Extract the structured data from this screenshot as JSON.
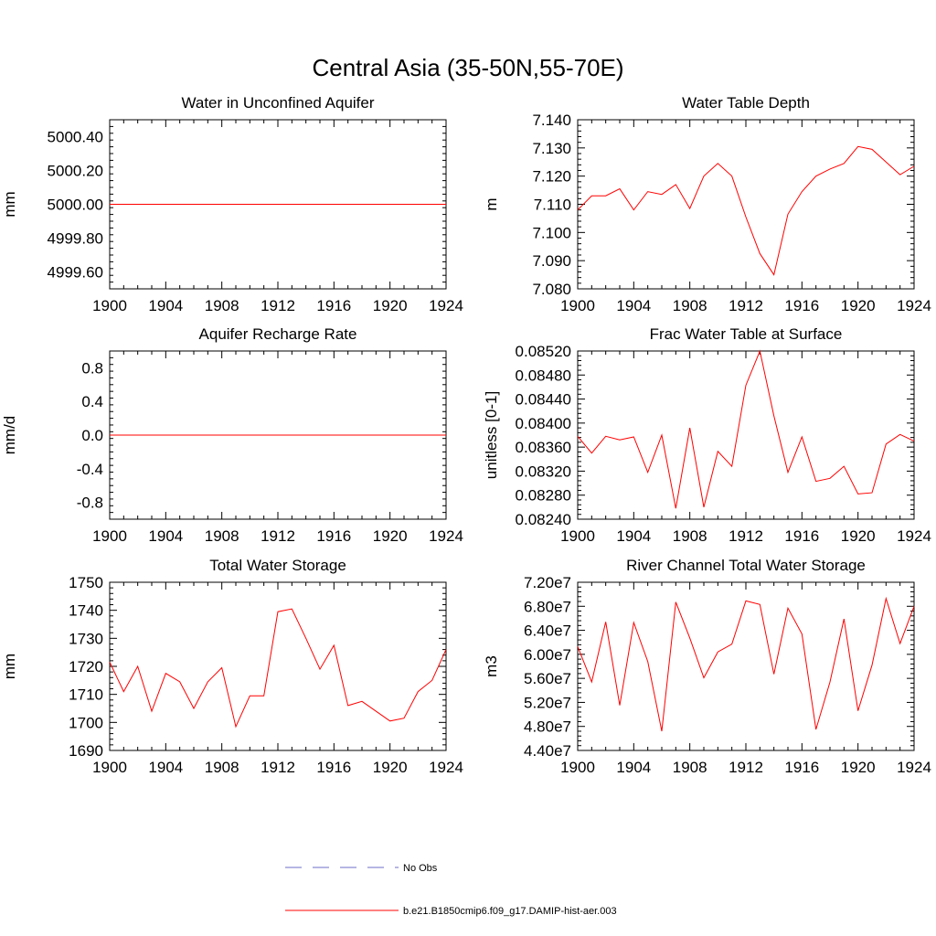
{
  "page_title": "Central Asia (35-50N,55-70E)",
  "legend": {
    "entries": [
      {
        "label": "No Obs",
        "style": "dashed",
        "color": "#6e6ec8"
      },
      {
        "label": "b.e21.B1850cmip6.f09_g17.DAMIP-hist-aer.003",
        "style": "solid",
        "color": "#ff0000"
      }
    ]
  },
  "chart_data": [
    {
      "type": "line",
      "title": "Water in Unconfined Aquifer",
      "ylabel": "mm",
      "xlim": [
        1900,
        1924
      ],
      "ylim": [
        4999.5,
        5000.5
      ],
      "xticks": [
        "1900",
        "1904",
        "1908",
        "1912",
        "1916",
        "1920",
        "1924"
      ],
      "yticks": [
        4999.6,
        4999.8,
        5000.0,
        5000.2,
        5000.4
      ],
      "ytick_labels": [
        "4999.60",
        "4999.80",
        "5000.00",
        "5000.20",
        "5000.40"
      ],
      "series": [
        {
          "name": "b.e21.B1850cmip6.f09_g17.DAMIP-hist-aer.003",
          "color": "#ff0000",
          "x": [
            1900,
            1901,
            1902,
            1903,
            1904,
            1905,
            1906,
            1907,
            1908,
            1909,
            1910,
            1911,
            1912,
            1913,
            1914,
            1915,
            1916,
            1917,
            1918,
            1919,
            1920,
            1921,
            1922,
            1923,
            1924
          ],
          "values": [
            5000,
            5000,
            5000,
            5000,
            5000,
            5000,
            5000,
            5000,
            5000,
            5000,
            5000,
            5000,
            5000,
            5000,
            5000,
            5000,
            5000,
            5000,
            5000,
            5000,
            5000,
            5000,
            5000,
            5000,
            5000
          ]
        }
      ]
    },
    {
      "type": "line",
      "title": "Water Table Depth",
      "ylabel": "m",
      "xlim": [
        1900,
        1924
      ],
      "ylim": [
        7.08,
        7.14
      ],
      "xticks": [
        "1900",
        "1904",
        "1908",
        "1912",
        "1916",
        "1920",
        "1924"
      ],
      "yticks": [
        7.08,
        7.09,
        7.1,
        7.11,
        7.12,
        7.13,
        7.14
      ],
      "ytick_labels": [
        "7.080",
        "7.090",
        "7.100",
        "7.110",
        "7.120",
        "7.130",
        "7.140"
      ],
      "series": [
        {
          "name": "b.e21.B1850cmip6.f09_g17.DAMIP-hist-aer.003",
          "color": "#ff0000",
          "x": [
            1900,
            1901,
            1902,
            1903,
            1904,
            1905,
            1906,
            1907,
            1908,
            1909,
            1910,
            1911,
            1912,
            1913,
            1914,
            1915,
            1916,
            1917,
            1918,
            1919,
            1920,
            1921,
            1922,
            1923,
            1924
          ],
          "values": [
            7.108,
            7.113,
            7.113,
            7.1155,
            7.108,
            7.1145,
            7.1135,
            7.117,
            7.1085,
            7.12,
            7.1245,
            7.12,
            7.1055,
            7.0925,
            7.085,
            7.1065,
            7.1145,
            7.12,
            7.1225,
            7.1245,
            7.1305,
            7.1295,
            7.125,
            7.1205,
            7.1235
          ]
        }
      ]
    },
    {
      "type": "line",
      "title": "Aquifer Recharge Rate",
      "ylabel": "mm/d",
      "xlim": [
        1900,
        1924
      ],
      "ylim": [
        -1.0,
        1.0
      ],
      "xticks": [
        "1900",
        "1904",
        "1908",
        "1912",
        "1916",
        "1920",
        "1924"
      ],
      "yticks": [
        -0.8,
        -0.4,
        0.0,
        0.4,
        0.8
      ],
      "ytick_labels": [
        "-0.8",
        "-0.4",
        "0.0",
        "0.4",
        "0.8"
      ],
      "series": [
        {
          "name": "b.e21.B1850cmip6.f09_g17.DAMIP-hist-aer.003",
          "color": "#ff0000",
          "x": [
            1900,
            1901,
            1902,
            1903,
            1904,
            1905,
            1906,
            1907,
            1908,
            1909,
            1910,
            1911,
            1912,
            1913,
            1914,
            1915,
            1916,
            1917,
            1918,
            1919,
            1920,
            1921,
            1922,
            1923,
            1924
          ],
          "values": [
            0,
            0,
            0,
            0,
            0,
            0,
            0,
            0,
            0,
            0,
            0,
            0,
            0,
            0,
            0,
            0,
            0,
            0,
            0,
            0,
            0,
            0,
            0,
            0,
            0
          ]
        }
      ]
    },
    {
      "type": "line",
      "title": "Frac Water Table at Surface",
      "ylabel": "unitless [0-1]",
      "xlim": [
        1900,
        1924
      ],
      "ylim": [
        0.0824,
        0.0852
      ],
      "xticks": [
        "1900",
        "1904",
        "1908",
        "1912",
        "1916",
        "1920",
        "1924"
      ],
      "yticks": [
        0.0824,
        0.0828,
        0.0832,
        0.0836,
        0.084,
        0.0844,
        0.0848,
        0.0852
      ],
      "ytick_labels": [
        "0.08240",
        "0.08280",
        "0.08320",
        "0.08360",
        "0.08400",
        "0.08440",
        "0.08480",
        "0.08520"
      ],
      "series": [
        {
          "name": "b.e21.B1850cmip6.f09_g17.DAMIP-hist-aer.003",
          "color": "#ff0000",
          "x": [
            1900,
            1901,
            1902,
            1903,
            1904,
            1905,
            1906,
            1907,
            1908,
            1909,
            1910,
            1911,
            1912,
            1913,
            1914,
            1915,
            1916,
            1917,
            1918,
            1919,
            1920,
            1921,
            1922,
            1923,
            1924
          ],
          "values": [
            0.08378,
            0.0835,
            0.08378,
            0.08372,
            0.08377,
            0.08318,
            0.0838,
            0.08258,
            0.08392,
            0.0826,
            0.08353,
            0.08328,
            0.08463,
            0.0852,
            0.08412,
            0.08318,
            0.08377,
            0.08303,
            0.08308,
            0.08328,
            0.08282,
            0.08284,
            0.08365,
            0.08381,
            0.0837
          ]
        }
      ]
    },
    {
      "type": "line",
      "title": "Total Water Storage",
      "ylabel": "mm",
      "xlim": [
        1900,
        1924
      ],
      "ylim": [
        1690,
        1750
      ],
      "xticks": [
        "1900",
        "1904",
        "1908",
        "1912",
        "1916",
        "1920",
        "1924"
      ],
      "yticks": [
        1690,
        1700,
        1710,
        1720,
        1730,
        1740,
        1750
      ],
      "ytick_labels": [
        "1690",
        "1700",
        "1710",
        "1720",
        "1730",
        "1740",
        "1750"
      ],
      "series": [
        {
          "name": "b.e21.B1850cmip6.f09_g17.DAMIP-hist-aer.003",
          "color": "#ff0000",
          "x": [
            1900,
            1901,
            1902,
            1903,
            1904,
            1905,
            1906,
            1907,
            1908,
            1909,
            1910,
            1911,
            1912,
            1913,
            1914,
            1915,
            1916,
            1917,
            1918,
            1919,
            1920,
            1921,
            1922,
            1923,
            1924
          ],
          "values": [
            1721.5,
            1711,
            1720,
            1704,
            1717.5,
            1714.5,
            1705,
            1714.5,
            1719.5,
            1698.5,
            1709.5,
            1709.5,
            1739.5,
            1740.5,
            1730,
            1719,
            1727.5,
            1706,
            1707.5,
            1704,
            1700.5,
            1701.5,
            1711,
            1715,
            1726
          ]
        }
      ]
    },
    {
      "type": "line",
      "title": "River Channel Total Water Storage",
      "ylabel": "m3",
      "xlim": [
        1900,
        1924
      ],
      "ylim": [
        44000000,
        72000000
      ],
      "xticks": [
        "1900",
        "1904",
        "1908",
        "1912",
        "1916",
        "1920",
        "1924"
      ],
      "yticks": [
        44000000,
        48000000,
        52000000,
        56000000,
        60000000,
        64000000,
        68000000,
        72000000
      ],
      "ytick_labels": [
        "4.40e7",
        "4.80e7",
        "5.20e7",
        "5.60e7",
        "6.00e7",
        "6.40e7",
        "6.80e7",
        "7.20e7"
      ],
      "series": [
        {
          "name": "b.e21.B1850cmip6.f09_g17.DAMIP-hist-aer.003",
          "color": "#ff0000",
          "x": [
            1900,
            1901,
            1902,
            1903,
            1904,
            1905,
            1906,
            1907,
            1908,
            1909,
            1910,
            1911,
            1912,
            1913,
            1914,
            1915,
            1916,
            1917,
            1918,
            1919,
            1920,
            1921,
            1922,
            1923,
            1924
          ],
          "values": [
            61300000,
            55400000,
            65400000,
            51500000,
            65300000,
            58800000,
            47200000,
            68700000,
            62700000,
            56100000,
            60400000,
            61700000,
            68900000,
            68300000,
            56700000,
            67700000,
            63400000,
            47500000,
            55400000,
            65900000,
            50600000,
            58200000,
            69300000,
            61800000,
            68000000
          ]
        }
      ]
    }
  ]
}
